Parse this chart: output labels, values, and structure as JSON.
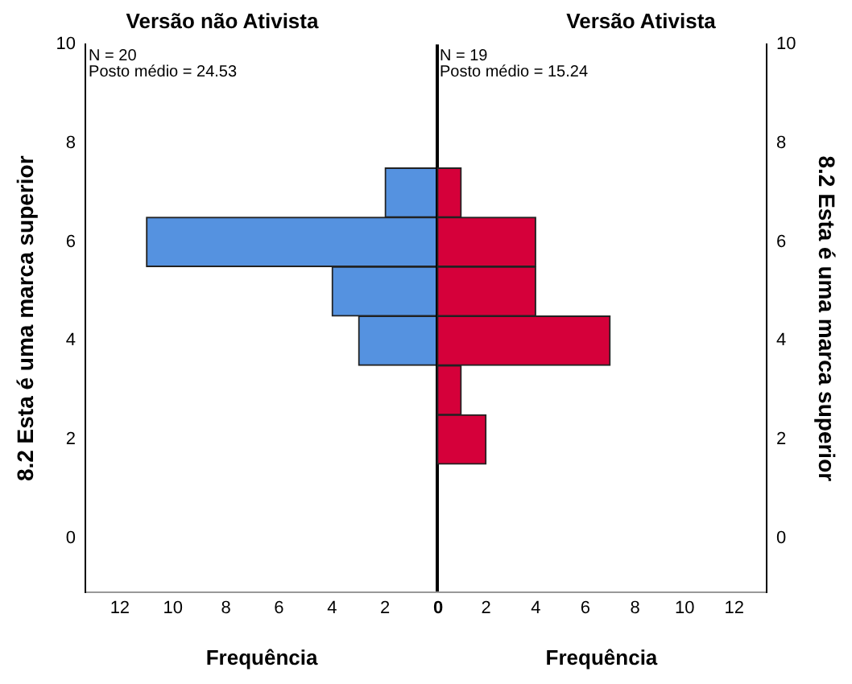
{
  "chart_data": [
    {
      "type": "histogram",
      "orientation": "horizontal",
      "title": "Versão não Ativista",
      "xlabel": "Frequência",
      "ylabel": "8.2 Esta é uma marca superior",
      "bins": [
        3.5,
        4.5,
        5.5,
        6.5,
        7.5
      ],
      "values": [
        3,
        4,
        11,
        2
      ],
      "color": "#5592e0",
      "xlim": [
        13.3,
        0
      ],
      "xticks": [
        12,
        10,
        8,
        6,
        4,
        2,
        0
      ],
      "ylim": [
        -1.1,
        10
      ],
      "yticks": [
        0,
        2,
        4,
        6,
        8,
        10
      ],
      "annotations": [
        "N = 20",
        "Posto médio = 24.53"
      ]
    },
    {
      "type": "histogram",
      "orientation": "horizontal",
      "title": "Versão Ativista",
      "xlabel": "Frequência",
      "ylabel": "8.2 Esta é uma marca superior",
      "bins": [
        1.5,
        2.5,
        3.5,
        4.5,
        5.5,
        6.5,
        7.5
      ],
      "values": [
        2,
        1,
        7,
        4,
        4,
        1
      ],
      "color": "#d5003a",
      "xlim": [
        0,
        13.3
      ],
      "xticks": [
        {
          "value": 0,
          "label": null
        },
        2,
        4,
        6,
        8,
        10,
        12
      ],
      "ylim": [
        -1.1,
        10
      ],
      "yticks": [
        0,
        2,
        4,
        6,
        8,
        10
      ],
      "annotations": [
        "N = 19",
        "Posto médio = 15.24"
      ]
    }
  ]
}
